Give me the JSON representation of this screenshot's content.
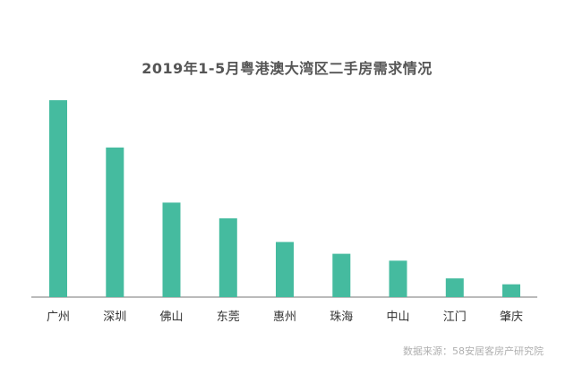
{
  "chart_data": {
    "type": "bar",
    "title": "2019年1-5月粤港澳大湾区二手房需求情况",
    "categories": [
      "广州",
      "深圳",
      "佛山",
      "东莞",
      "惠州",
      "珠海",
      "中山",
      "江门",
      "肇庆"
    ],
    "values": [
      100,
      76,
      48,
      40,
      28,
      22,
      18.5,
      9.5,
      6.5
    ],
    "ylim": [
      0,
      100
    ],
    "xlabel": "",
    "ylabel": "",
    "grid": false,
    "y_axis_visible": false,
    "bar_color": "#45bb9f",
    "source": "数据来源：58安居客房产研究院"
  }
}
